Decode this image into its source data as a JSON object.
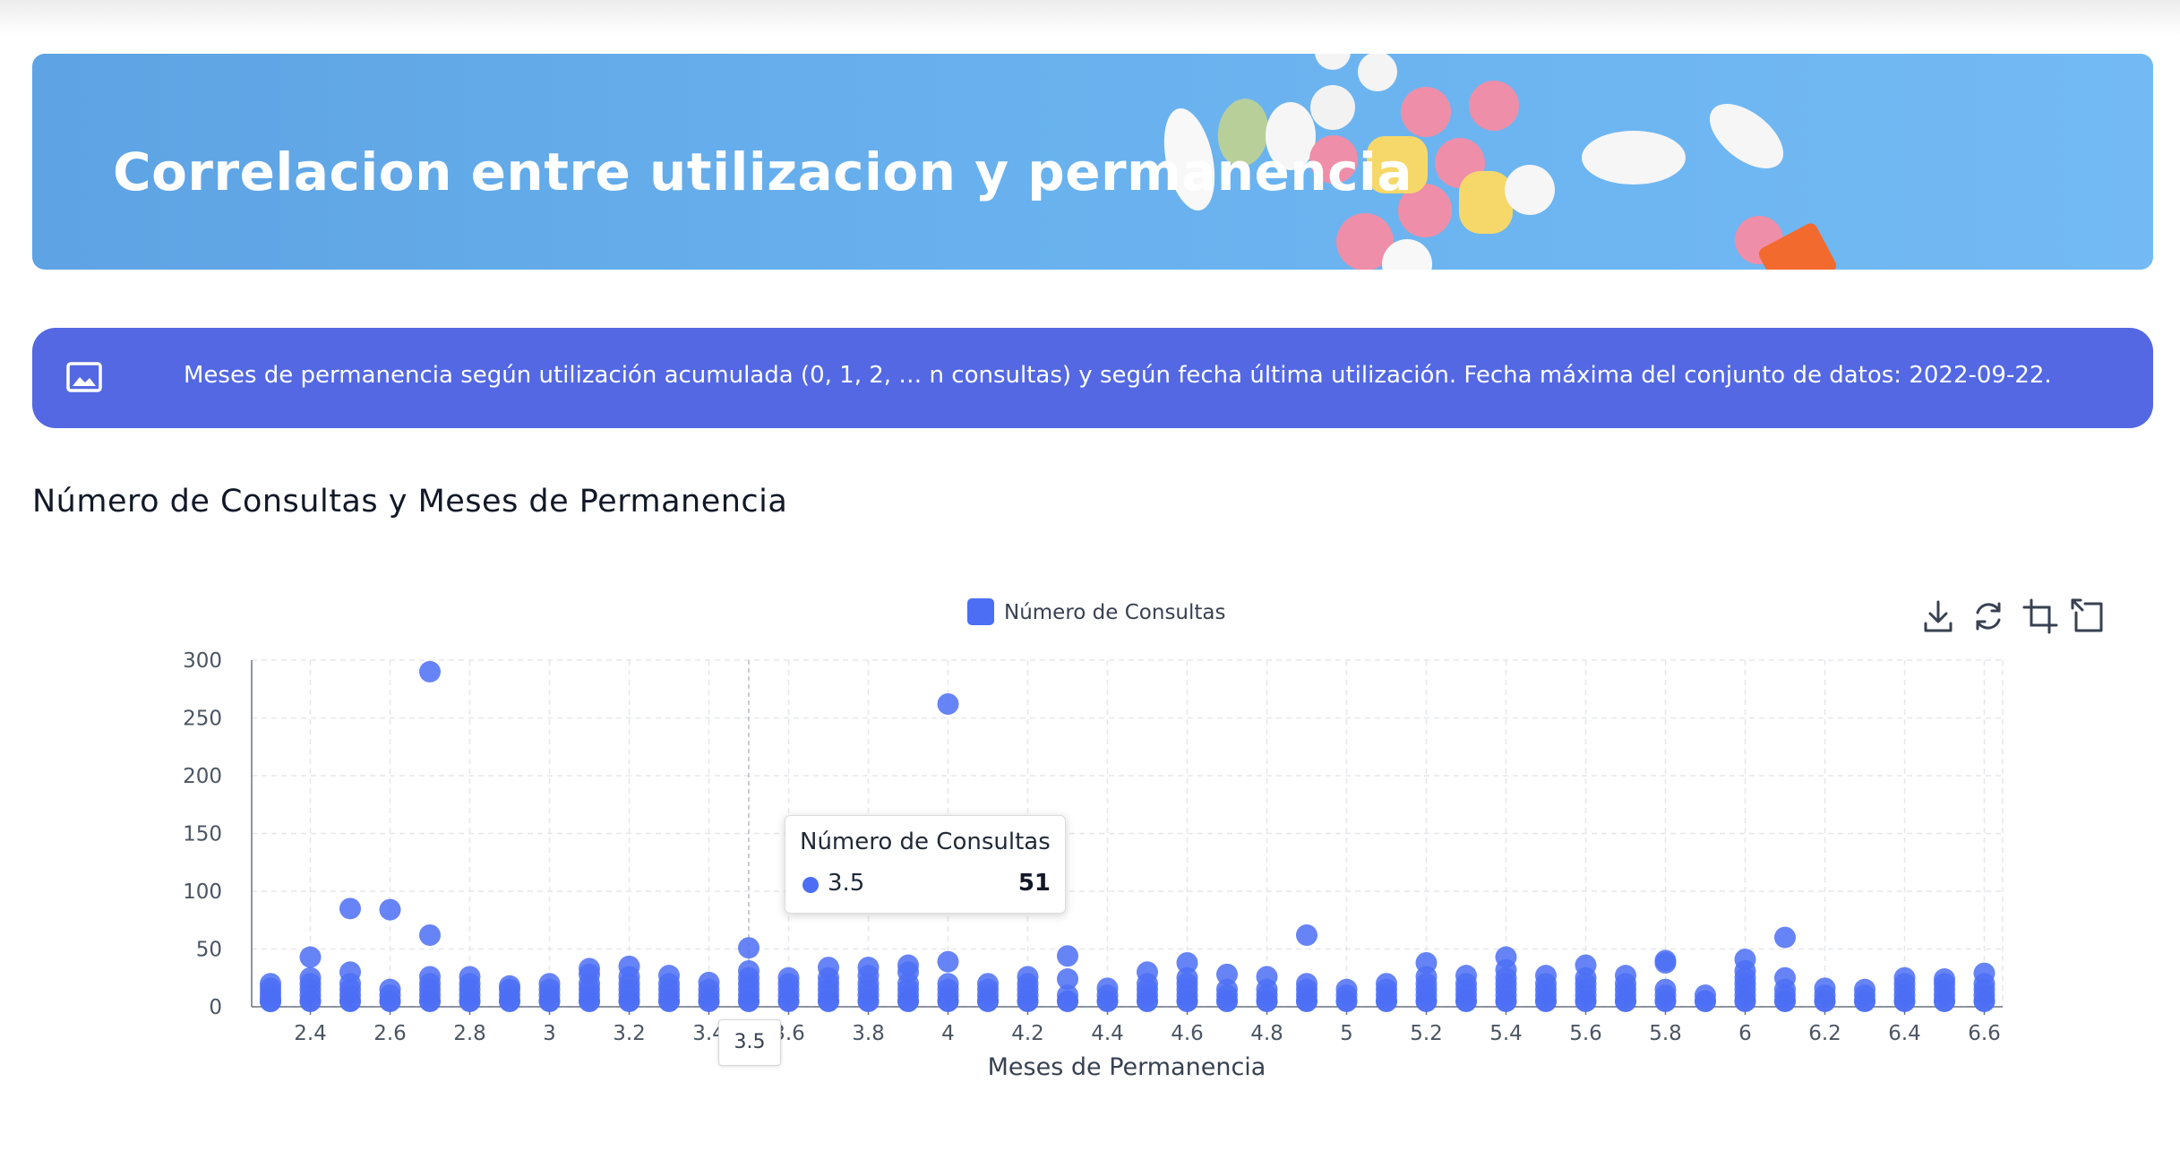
{
  "banner": {
    "title": "Correlacion entre utilizacion y permanencia"
  },
  "info": {
    "icon": "image-icon",
    "text": "Meses de permanencia según utilización acumulada (0, 1, 2, … n consultas) y según fecha última utilización. Fecha máxima del conjunto de datos: 2022-09-22."
  },
  "section": {
    "title": "Número de Consultas y Meses de Permanencia"
  },
  "colors": {
    "banner": "#68b1ee",
    "info_bar": "#5368e2",
    "series": "#4c6ef5"
  },
  "toolbar": {
    "icons": [
      "download-icon",
      "reset-icon",
      "zoom-select-icon",
      "zoom-back-icon"
    ]
  },
  "tooltip": {
    "series_name": "Número de Consultas",
    "x": "3.5",
    "y": "51",
    "axis_label": "3.5"
  },
  "chart_data": {
    "type": "scatter",
    "title": "",
    "xlabel": "Meses de Permanencia",
    "ylabel": "",
    "xlim": [
      2.3,
      6.6
    ],
    "ylim": [
      0,
      300
    ],
    "x_ticks": [
      "2.4",
      "2.6",
      "2.8",
      "3",
      "3.2",
      "3.4",
      "3.6",
      "3.8",
      "4",
      "4.2",
      "4.4",
      "4.6",
      "4.8",
      "5",
      "5.2",
      "5.4",
      "5.6",
      "5.8",
      "6",
      "6.2",
      "6.4",
      "6.6"
    ],
    "y_ticks": [
      "0",
      "50",
      "100",
      "150",
      "200",
      "250",
      "300"
    ],
    "grid": true,
    "legend": "top-center",
    "series": [
      {
        "name": "Número de Consultas",
        "points": [
          [
            2.3,
            0
          ],
          [
            2.3,
            4
          ],
          [
            2.3,
            8
          ],
          [
            2.3,
            12
          ],
          [
            2.3,
            16
          ],
          [
            2.3,
            20
          ],
          [
            2.4,
            0
          ],
          [
            2.4,
            5
          ],
          [
            2.4,
            10
          ],
          [
            2.4,
            15
          ],
          [
            2.4,
            20
          ],
          [
            2.4,
            25
          ],
          [
            2.4,
            43
          ],
          [
            2.5,
            0
          ],
          [
            2.5,
            5
          ],
          [
            2.5,
            10
          ],
          [
            2.5,
            15
          ],
          [
            2.5,
            20
          ],
          [
            2.5,
            30
          ],
          [
            2.5,
            85
          ],
          [
            2.6,
            0
          ],
          [
            2.6,
            5
          ],
          [
            2.6,
            10
          ],
          [
            2.6,
            15
          ],
          [
            2.6,
            84
          ],
          [
            2.7,
            0
          ],
          [
            2.7,
            5
          ],
          [
            2.7,
            10
          ],
          [
            2.7,
            15
          ],
          [
            2.7,
            20
          ],
          [
            2.7,
            26
          ],
          [
            2.7,
            62
          ],
          [
            2.7,
            290
          ],
          [
            2.8,
            0
          ],
          [
            2.8,
            5
          ],
          [
            2.8,
            10
          ],
          [
            2.8,
            15
          ],
          [
            2.8,
            20
          ],
          [
            2.8,
            26
          ],
          [
            2.9,
            0
          ],
          [
            2.9,
            5
          ],
          [
            2.9,
            10
          ],
          [
            2.9,
            15
          ],
          [
            2.9,
            18
          ],
          [
            3.0,
            0
          ],
          [
            3.0,
            5
          ],
          [
            3.0,
            10
          ],
          [
            3.0,
            15
          ],
          [
            3.0,
            20
          ],
          [
            3.1,
            0
          ],
          [
            3.1,
            5
          ],
          [
            3.1,
            10
          ],
          [
            3.1,
            15
          ],
          [
            3.1,
            20
          ],
          [
            3.1,
            28
          ],
          [
            3.1,
            33
          ],
          [
            3.2,
            0
          ],
          [
            3.2,
            5
          ],
          [
            3.2,
            10
          ],
          [
            3.2,
            15
          ],
          [
            3.2,
            20
          ],
          [
            3.2,
            26
          ],
          [
            3.2,
            35
          ],
          [
            3.3,
            0
          ],
          [
            3.3,
            5
          ],
          [
            3.3,
            10
          ],
          [
            3.3,
            15
          ],
          [
            3.3,
            20
          ],
          [
            3.3,
            27
          ],
          [
            3.4,
            0
          ],
          [
            3.4,
            5
          ],
          [
            3.4,
            10
          ],
          [
            3.4,
            15
          ],
          [
            3.4,
            21
          ],
          [
            3.5,
            0
          ],
          [
            3.5,
            5
          ],
          [
            3.5,
            10
          ],
          [
            3.5,
            15
          ],
          [
            3.5,
            20
          ],
          [
            3.5,
            25
          ],
          [
            3.5,
            31
          ],
          [
            3.5,
            51
          ],
          [
            3.6,
            0
          ],
          [
            3.6,
            5
          ],
          [
            3.6,
            10
          ],
          [
            3.6,
            15
          ],
          [
            3.6,
            20
          ],
          [
            3.6,
            25
          ],
          [
            3.7,
            0
          ],
          [
            3.7,
            5
          ],
          [
            3.7,
            10
          ],
          [
            3.7,
            15
          ],
          [
            3.7,
            20
          ],
          [
            3.7,
            25
          ],
          [
            3.7,
            34
          ],
          [
            3.8,
            0
          ],
          [
            3.8,
            5
          ],
          [
            3.8,
            10
          ],
          [
            3.8,
            15
          ],
          [
            3.8,
            20
          ],
          [
            3.8,
            27
          ],
          [
            3.8,
            34
          ],
          [
            3.9,
            0
          ],
          [
            3.9,
            5
          ],
          [
            3.9,
            10
          ],
          [
            3.9,
            15
          ],
          [
            3.9,
            20
          ],
          [
            3.9,
            30
          ],
          [
            3.9,
            36
          ],
          [
            4.0,
            0
          ],
          [
            4.0,
            5
          ],
          [
            4.0,
            10
          ],
          [
            4.0,
            15
          ],
          [
            4.0,
            20
          ],
          [
            4.0,
            39
          ],
          [
            4.0,
            262
          ],
          [
            4.1,
            0
          ],
          [
            4.1,
            5
          ],
          [
            4.1,
            10
          ],
          [
            4.1,
            15
          ],
          [
            4.1,
            20
          ],
          [
            4.2,
            0
          ],
          [
            4.2,
            5
          ],
          [
            4.2,
            10
          ],
          [
            4.2,
            15
          ],
          [
            4.2,
            20
          ],
          [
            4.2,
            26
          ],
          [
            4.3,
            0
          ],
          [
            4.3,
            5
          ],
          [
            4.3,
            10
          ],
          [
            4.3,
            24
          ],
          [
            4.3,
            44
          ],
          [
            4.4,
            0
          ],
          [
            4.4,
            5
          ],
          [
            4.4,
            10
          ],
          [
            4.4,
            16
          ],
          [
            4.5,
            0
          ],
          [
            4.5,
            5
          ],
          [
            4.5,
            10
          ],
          [
            4.5,
            15
          ],
          [
            4.5,
            20
          ],
          [
            4.5,
            30
          ],
          [
            4.6,
            0
          ],
          [
            4.6,
            5
          ],
          [
            4.6,
            10
          ],
          [
            4.6,
            15
          ],
          [
            4.6,
            20
          ],
          [
            4.6,
            25
          ],
          [
            4.6,
            38
          ],
          [
            4.7,
            0
          ],
          [
            4.7,
            5
          ],
          [
            4.7,
            10
          ],
          [
            4.7,
            15
          ],
          [
            4.7,
            28
          ],
          [
            4.8,
            0
          ],
          [
            4.8,
            5
          ],
          [
            4.8,
            10
          ],
          [
            4.8,
            15
          ],
          [
            4.8,
            26
          ],
          [
            4.9,
            0
          ],
          [
            4.9,
            5
          ],
          [
            4.9,
            10
          ],
          [
            4.9,
            15
          ],
          [
            4.9,
            20
          ],
          [
            4.9,
            62
          ],
          [
            5.0,
            0
          ],
          [
            5.0,
            5
          ],
          [
            5.0,
            10
          ],
          [
            5.0,
            15
          ],
          [
            5.1,
            0
          ],
          [
            5.1,
            5
          ],
          [
            5.1,
            10
          ],
          [
            5.1,
            15
          ],
          [
            5.1,
            20
          ],
          [
            5.2,
            0
          ],
          [
            5.2,
            5
          ],
          [
            5.2,
            10
          ],
          [
            5.2,
            15
          ],
          [
            5.2,
            20
          ],
          [
            5.2,
            26
          ],
          [
            5.2,
            38
          ],
          [
            5.3,
            0
          ],
          [
            5.3,
            5
          ],
          [
            5.3,
            10
          ],
          [
            5.3,
            15
          ],
          [
            5.3,
            20
          ],
          [
            5.3,
            27
          ],
          [
            5.4,
            0
          ],
          [
            5.4,
            5
          ],
          [
            5.4,
            10
          ],
          [
            5.4,
            15
          ],
          [
            5.4,
            20
          ],
          [
            5.4,
            25
          ],
          [
            5.4,
            32
          ],
          [
            5.4,
            43
          ],
          [
            5.5,
            0
          ],
          [
            5.5,
            5
          ],
          [
            5.5,
            10
          ],
          [
            5.5,
            15
          ],
          [
            5.5,
            20
          ],
          [
            5.5,
            27
          ],
          [
            5.6,
            0
          ],
          [
            5.6,
            5
          ],
          [
            5.6,
            10
          ],
          [
            5.6,
            15
          ],
          [
            5.6,
            20
          ],
          [
            5.6,
            25
          ],
          [
            5.6,
            36
          ],
          [
            5.7,
            0
          ],
          [
            5.7,
            5
          ],
          [
            5.7,
            10
          ],
          [
            5.7,
            15
          ],
          [
            5.7,
            20
          ],
          [
            5.7,
            27
          ],
          [
            5.8,
            0
          ],
          [
            5.8,
            5
          ],
          [
            5.8,
            10
          ],
          [
            5.8,
            15
          ],
          [
            5.8,
            38
          ],
          [
            5.8,
            40
          ],
          [
            5.9,
            0
          ],
          [
            5.9,
            5
          ],
          [
            5.9,
            10
          ],
          [
            6.0,
            0
          ],
          [
            6.0,
            5
          ],
          [
            6.0,
            10
          ],
          [
            6.0,
            15
          ],
          [
            6.0,
            20
          ],
          [
            6.0,
            25
          ],
          [
            6.0,
            31
          ],
          [
            6.0,
            41
          ],
          [
            6.1,
            0
          ],
          [
            6.1,
            5
          ],
          [
            6.1,
            10
          ],
          [
            6.1,
            15
          ],
          [
            6.1,
            25
          ],
          [
            6.1,
            60
          ],
          [
            6.2,
            0
          ],
          [
            6.2,
            5
          ],
          [
            6.2,
            10
          ],
          [
            6.2,
            16
          ],
          [
            6.3,
            0
          ],
          [
            6.3,
            5
          ],
          [
            6.3,
            10
          ],
          [
            6.3,
            15
          ],
          [
            6.4,
            0
          ],
          [
            6.4,
            5
          ],
          [
            6.4,
            10
          ],
          [
            6.4,
            15
          ],
          [
            6.4,
            20
          ],
          [
            6.4,
            25
          ],
          [
            6.5,
            0
          ],
          [
            6.5,
            5
          ],
          [
            6.5,
            10
          ],
          [
            6.5,
            15
          ],
          [
            6.5,
            20
          ],
          [
            6.5,
            24
          ],
          [
            6.6,
            0
          ],
          [
            6.6,
            5
          ],
          [
            6.6,
            10
          ],
          [
            6.6,
            15
          ],
          [
            6.6,
            20
          ],
          [
            6.6,
            29
          ]
        ]
      }
    ]
  }
}
